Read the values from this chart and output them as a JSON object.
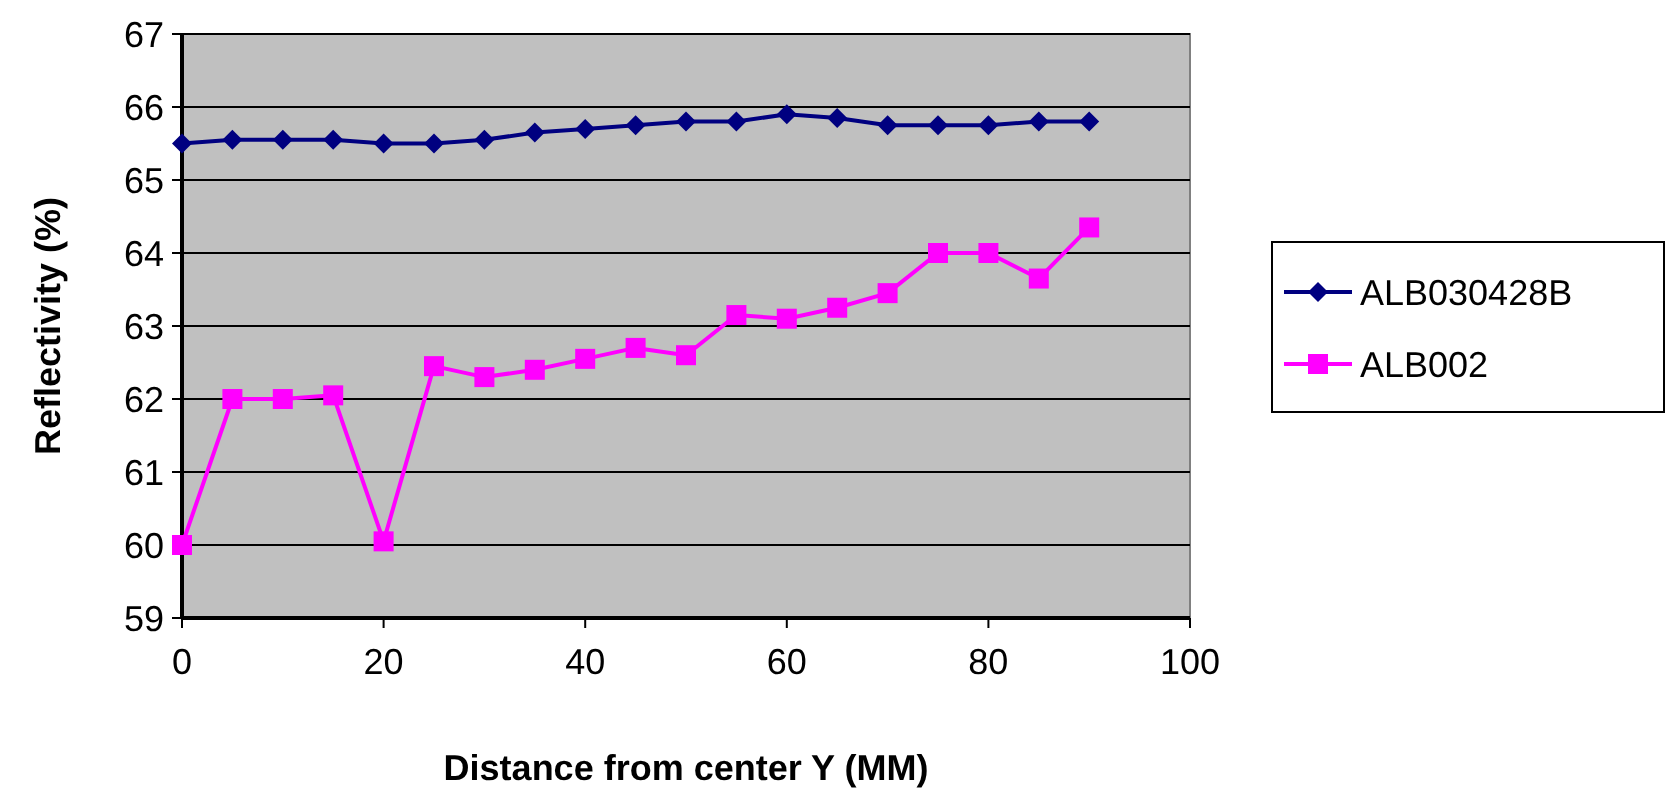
{
  "chart_data": {
    "type": "line",
    "xlabel": "Distance from center Y (MM)",
    "ylabel": "Reflectivity (%)",
    "x": [
      0,
      5,
      10,
      15,
      20,
      25,
      30,
      35,
      40,
      45,
      50,
      55,
      60,
      65,
      70,
      75,
      80,
      85,
      90
    ],
    "series": [
      {
        "name": "ALB030428B",
        "color": "#000080",
        "marker": "diamond",
        "values": [
          65.5,
          65.55,
          65.55,
          65.55,
          65.5,
          65.5,
          65.55,
          65.65,
          65.7,
          65.75,
          65.8,
          65.8,
          65.9,
          65.85,
          65.75,
          65.75,
          65.75,
          65.8,
          65.8
        ]
      },
      {
        "name": "ALB002",
        "color": "#ff00ff",
        "marker": "square",
        "values": [
          60,
          62,
          62,
          62.05,
          60.05,
          62.45,
          62.3,
          62.4,
          62.55,
          62.7,
          62.6,
          63.15,
          63.1,
          63.25,
          63.45,
          64,
          64,
          63.65,
          64.35
        ]
      }
    ],
    "xlim": [
      0,
      100
    ],
    "xticks": [
      0,
      20,
      40,
      60,
      80,
      100
    ],
    "ylim": [
      59,
      67
    ],
    "yticks": [
      59,
      60,
      61,
      62,
      63,
      64,
      65,
      66,
      67
    ],
    "grid": "y",
    "legend": "right",
    "line_style": "solid"
  }
}
